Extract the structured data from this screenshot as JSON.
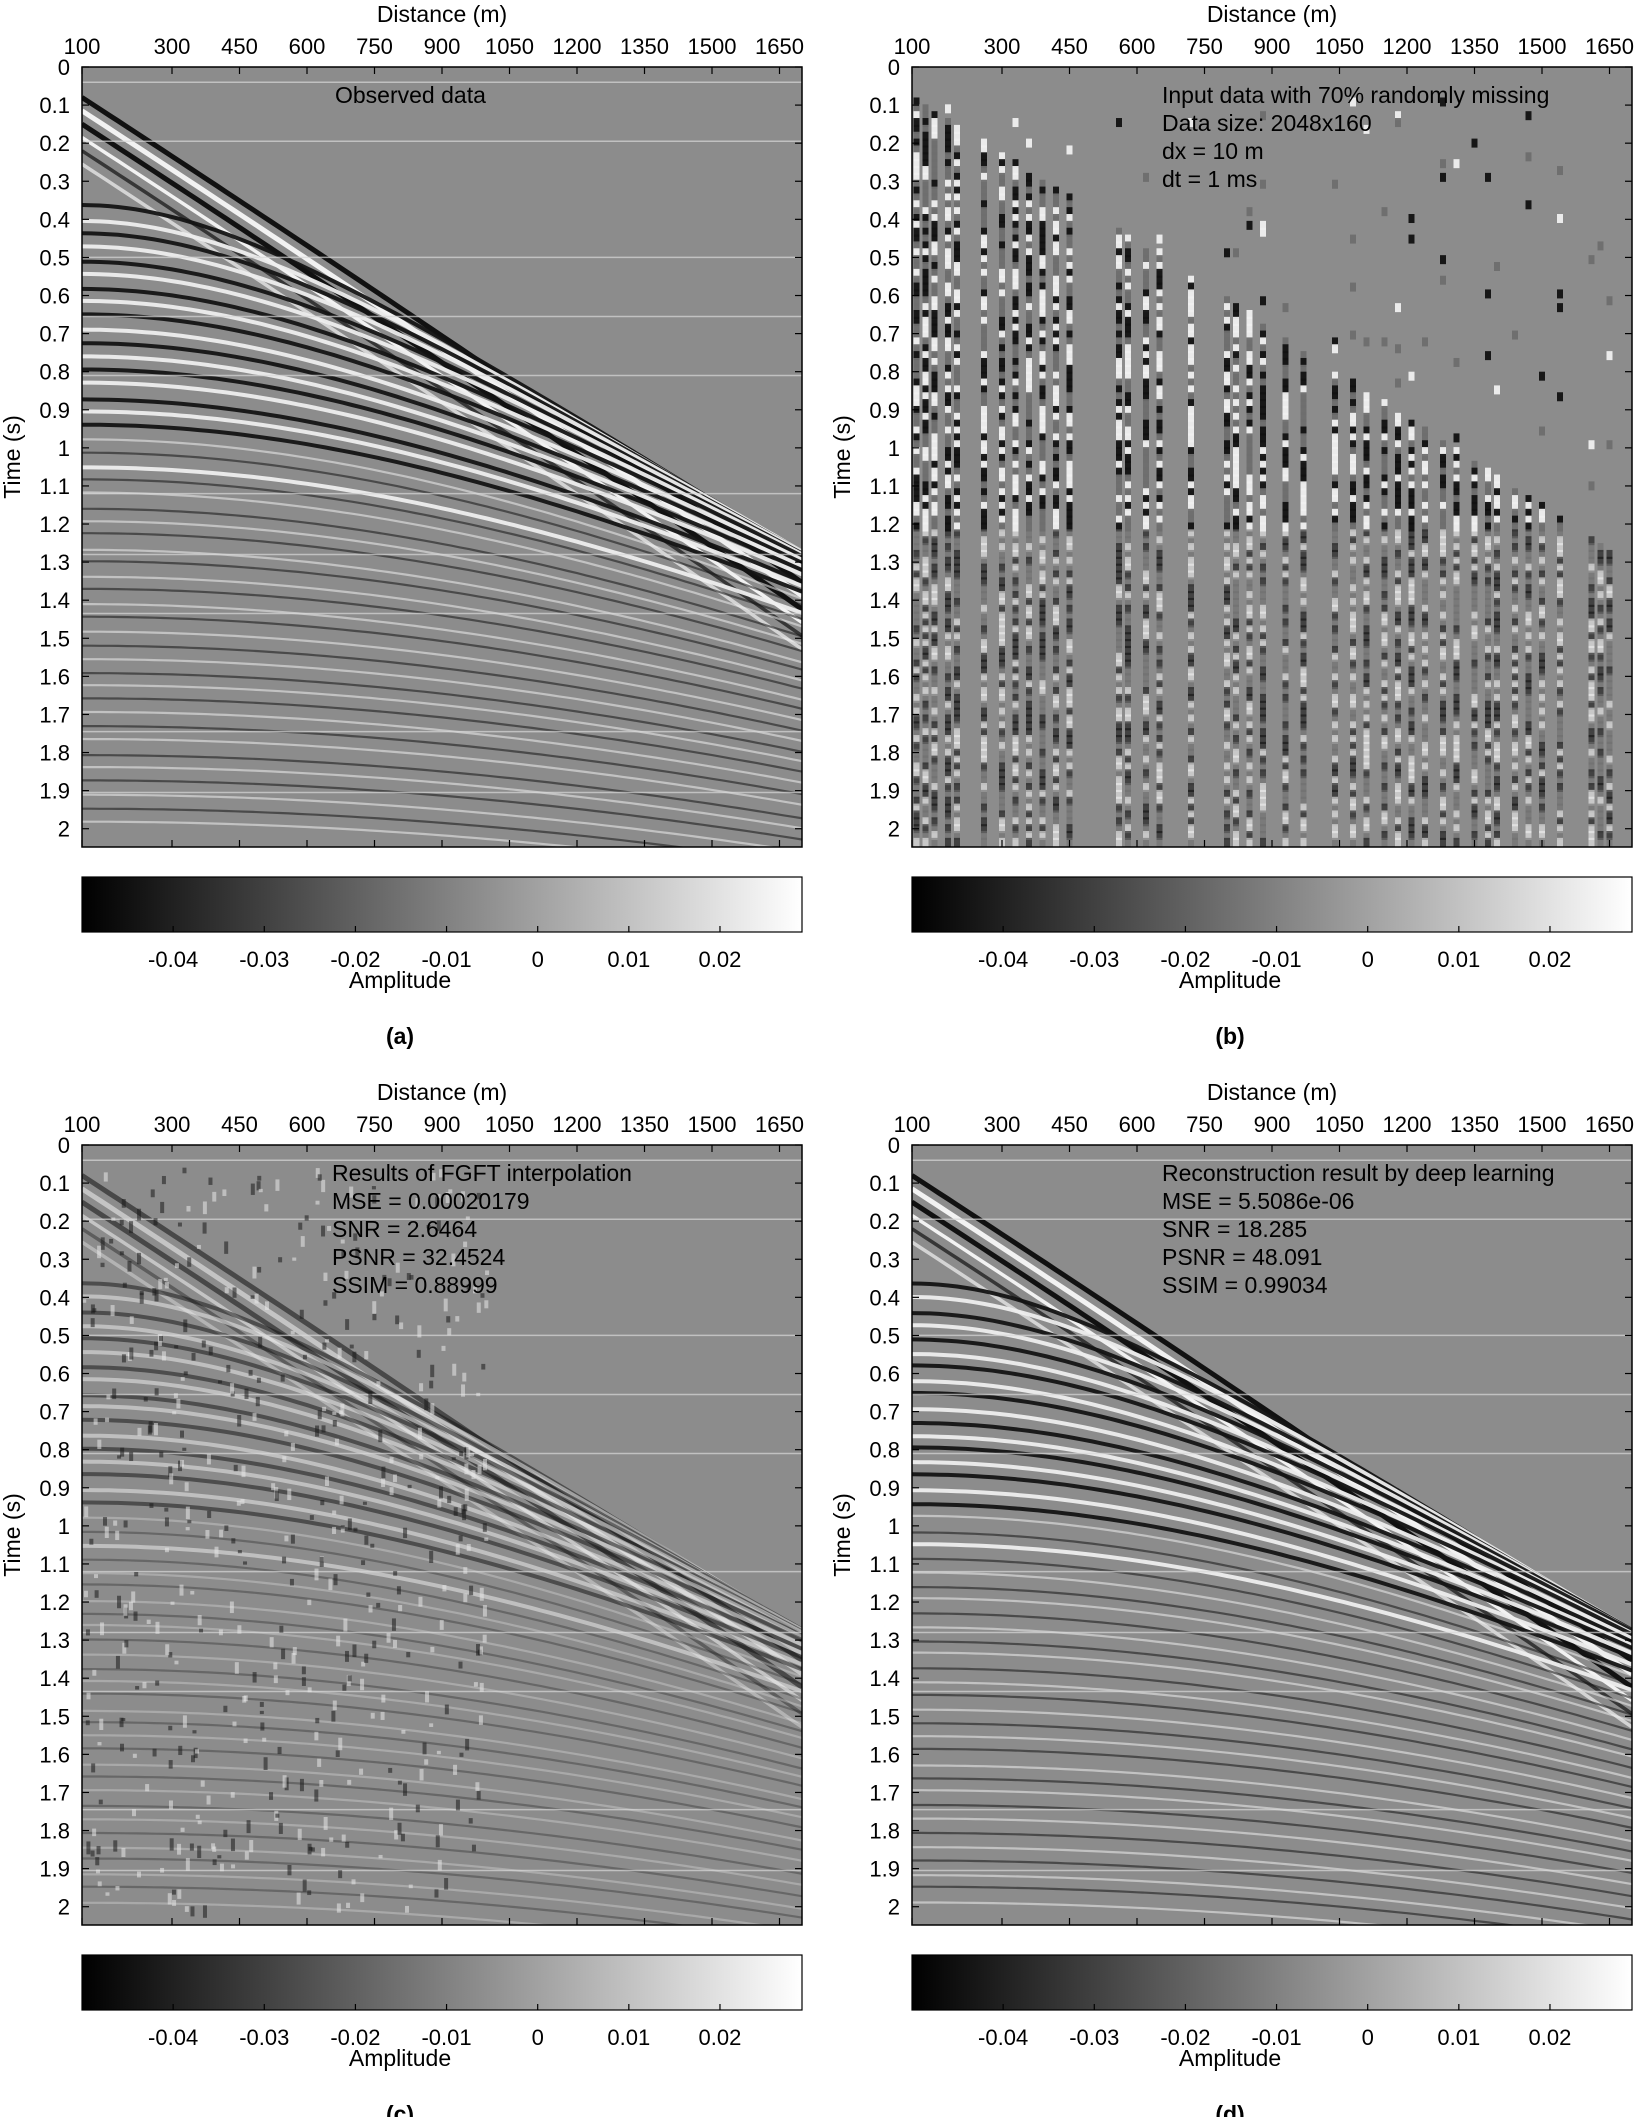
{
  "chart_data": [
    {
      "type": "heatmap",
      "panel_label": "(a)",
      "xlabel": "Distance (m)",
      "ylabel": "Time (s)",
      "xlim": [
        100,
        1700
      ],
      "ylim": [
        0,
        2.048
      ],
      "x_ticks": [
        "100",
        "300",
        "450",
        "600",
        "750",
        "900",
        "1050",
        "1200",
        "1350",
        "1500",
        "1650"
      ],
      "y_ticks": [
        "0",
        "0.1",
        "0.2",
        "0.3",
        "0.4",
        "0.5",
        "0.6",
        "0.7",
        "0.8",
        "0.9",
        "1",
        "1.1",
        "1.2",
        "1.3",
        "1.4",
        "1.5",
        "1.6",
        "1.7",
        "1.8",
        "1.9",
        "2"
      ],
      "annotation": [
        "Observed data"
      ],
      "colorbar": {
        "label": "Amplitude",
        "range": [
          -0.05,
          0.029
        ],
        "ticks": [
          "-0.04",
          "-0.03",
          "-0.02",
          "-0.01",
          "0",
          "0.01",
          "0.02"
        ],
        "colormap": "gray"
      }
    },
    {
      "type": "heatmap",
      "panel_label": "(b)",
      "xlabel": "Distance (m)",
      "ylabel": "Time (s)",
      "xlim": [
        100,
        1700
      ],
      "ylim": [
        0,
        2.048
      ],
      "x_ticks": [
        "100",
        "300",
        "450",
        "600",
        "750",
        "900",
        "1050",
        "1200",
        "1350",
        "1500",
        "1650"
      ],
      "y_ticks": [
        "0",
        "0.1",
        "0.2",
        "0.3",
        "0.4",
        "0.5",
        "0.6",
        "0.7",
        "0.8",
        "0.9",
        "1",
        "1.1",
        "1.2",
        "1.3",
        "1.4",
        "1.5",
        "1.6",
        "1.7",
        "1.8",
        "1.9",
        "2"
      ],
      "annotation": [
        "Input data with 70% randomly missing",
        "Data size: 2048x160",
        "dx = 10 m",
        "dt = 1 ms"
      ],
      "colorbar": {
        "label": "Amplitude",
        "range": [
          -0.05,
          0.029
        ],
        "ticks": [
          "-0.04",
          "-0.03",
          "-0.02",
          "-0.01",
          "0",
          "0.01",
          "0.02"
        ],
        "colormap": "gray"
      }
    },
    {
      "type": "heatmap",
      "panel_label": "(c)",
      "xlabel": "Distance (m)",
      "ylabel": "Time (s)",
      "xlim": [
        100,
        1700
      ],
      "ylim": [
        0,
        2.048
      ],
      "x_ticks": [
        "100",
        "300",
        "450",
        "600",
        "750",
        "900",
        "1050",
        "1200",
        "1350",
        "1500",
        "1650"
      ],
      "y_ticks": [
        "0",
        "0.1",
        "0.2",
        "0.3",
        "0.4",
        "0.5",
        "0.6",
        "0.7",
        "0.8",
        "0.9",
        "1",
        "1.1",
        "1.2",
        "1.3",
        "1.4",
        "1.5",
        "1.6",
        "1.7",
        "1.8",
        "1.9",
        "2"
      ],
      "annotation": [
        "Results of FGFT interpolation",
        "MSE  = 0.00020179",
        "SNR  = 2.6464",
        "PSNR = 32.4524",
        "SSIM = 0.88999"
      ],
      "colorbar": {
        "label": "Amplitude",
        "range": [
          -0.05,
          0.029
        ],
        "ticks": [
          "-0.04",
          "-0.03",
          "-0.02",
          "-0.01",
          "0",
          "0.01",
          "0.02"
        ],
        "colormap": "gray"
      }
    },
    {
      "type": "heatmap",
      "panel_label": "(d)",
      "xlabel": "Distance (m)",
      "ylabel": "Time (s)",
      "xlim": [
        100,
        1700
      ],
      "ylim": [
        0,
        2.048
      ],
      "x_ticks": [
        "100",
        "300",
        "450",
        "600",
        "750",
        "900",
        "1050",
        "1200",
        "1350",
        "1500",
        "1650"
      ],
      "y_ticks": [
        "0",
        "0.1",
        "0.2",
        "0.3",
        "0.4",
        "0.5",
        "0.6",
        "0.7",
        "0.8",
        "0.9",
        "1",
        "1.1",
        "1.2",
        "1.3",
        "1.4",
        "1.5",
        "1.6",
        "1.7",
        "1.8",
        "1.9",
        "2"
      ],
      "annotation": [
        "Reconstruction result by deep learning",
        "MSE  = 5.5086e-06",
        "SNR  = 18.285",
        "PSNR = 48.091",
        "SSIM = 0.99034"
      ],
      "colorbar": {
        "label": "Amplitude",
        "range": [
          -0.05,
          0.029
        ],
        "ticks": [
          "-0.04",
          "-0.03",
          "-0.02",
          "-0.01",
          "0",
          "0.01",
          "0.02"
        ],
        "colormap": "gray"
      }
    }
  ]
}
